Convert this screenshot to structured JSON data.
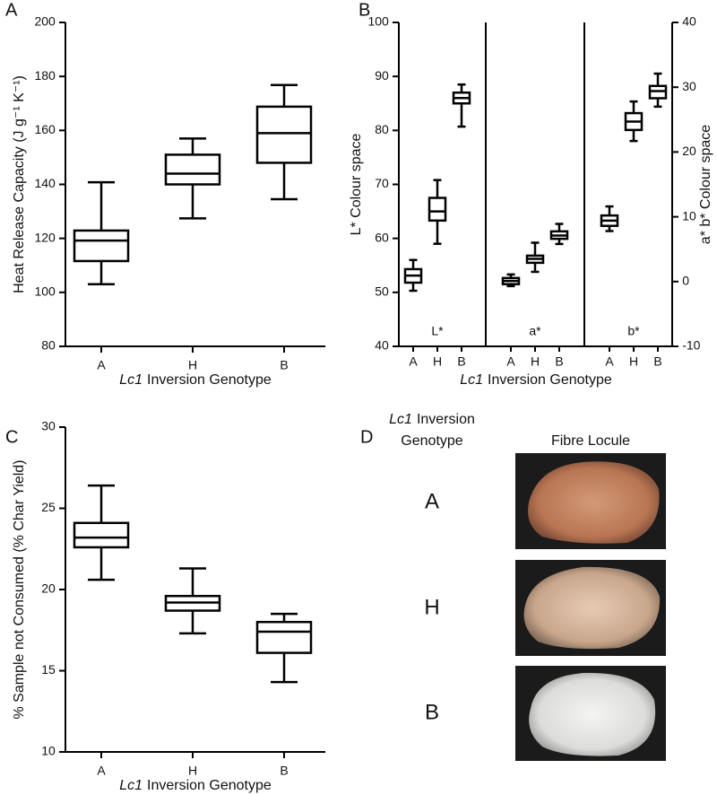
{
  "chart_data": [
    {
      "type": "box",
      "panel_label": "A",
      "ylabel": "Heat Release Capacity (J g⁻¹ K⁻¹)",
      "xlabel": {
        "italic": "Lc1",
        "text": "Inversion Genotype"
      },
      "categories": [
        "A",
        "H",
        "B"
      ],
      "boxes": [
        {
          "min": 103,
          "q1": 111.6,
          "median": 119.2,
          "q3": 122.9,
          "max": 140.8
        },
        {
          "min": 127.4,
          "q1": 140,
          "median": 144,
          "q3": 151,
          "max": 157
        },
        {
          "min": 134.5,
          "q1": 148,
          "median": 159,
          "q3": 168.8,
          "max": 176.8
        }
      ],
      "ylim": [
        80,
        200
      ],
      "yticks": [
        80,
        100,
        120,
        140,
        160,
        180,
        200
      ]
    },
    {
      "type": "grouped_box",
      "panel_label": "B",
      "ylabel": "L* Colour space",
      "y2label": "a* b* Colour space",
      "xlabel": {
        "italic": "Lc1",
        "text": "Inversion Genotype"
      },
      "groups": [
        {
          "label": "L*",
          "axis": "y",
          "categories": [
            "A",
            "H",
            "B"
          ],
          "boxes": [
            {
              "min": 50.3,
              "q1": 51.8,
              "median": 53.1,
              "q3": 54.3,
              "max": 56
            },
            {
              "min": 59,
              "q1": 63.3,
              "median": 65,
              "q3": 67.5,
              "max": 70.8
            },
            {
              "min": 80.7,
              "q1": 85,
              "median": 86,
              "q3": 87,
              "max": 88.5
            }
          ]
        },
        {
          "label": "a*",
          "axis": "y2",
          "categories": [
            "A",
            "H",
            "B"
          ],
          "boxes": [
            {
              "min": -0.7,
              "q1": -0.4,
              "median": 0.1,
              "q3": 0.55,
              "max": 1.1
            },
            {
              "min": 1.5,
              "q1": 2.9,
              "median": 3.5,
              "q3": 4,
              "max": 6
            },
            {
              "min": 5.8,
              "q1": 6.6,
              "median": 7.1,
              "q3": 7.75,
              "max": 8.9
            }
          ]
        },
        {
          "label": "b*",
          "axis": "y2",
          "categories": [
            "A",
            "H",
            "B"
          ],
          "boxes": [
            {
              "min": 7.8,
              "q1": 8.6,
              "median": 9.4,
              "q3": 10.2,
              "max": 11.6
            },
            {
              "min": 21.7,
              "q1": 23.4,
              "median": 24.7,
              "q3": 26,
              "max": 27.8
            },
            {
              "min": 27,
              "q1": 28.3,
              "median": 29.4,
              "q3": 30.2,
              "max": 32.1
            }
          ]
        }
      ],
      "ylim": [
        40,
        100
      ],
      "yticks": [
        40,
        50,
        60,
        70,
        80,
        90,
        100
      ],
      "y2lim": [
        -10,
        40
      ],
      "y2ticks": [
        -10,
        0,
        10,
        20,
        30,
        40
      ]
    },
    {
      "type": "box",
      "panel_label": "C",
      "ylabel": "% Sample not Consumed (% Char Yield)",
      "xlabel": {
        "italic": "Lc1",
        "text": "Inversion Genotype"
      },
      "categories": [
        "A",
        "H",
        "B"
      ],
      "boxes": [
        {
          "min": 20.6,
          "q1": 22.6,
          "median": 23.2,
          "q3": 24.1,
          "max": 26.4
        },
        {
          "min": 17.3,
          "q1": 18.7,
          "median": 19.2,
          "q3": 19.6,
          "max": 21.3
        },
        {
          "min": 14.3,
          "q1": 16.1,
          "median": 17.4,
          "q3": 18,
          "max": 18.5
        }
      ],
      "ylim": [
        10,
        30
      ],
      "yticks": [
        10,
        15,
        20,
        25,
        30
      ]
    }
  ],
  "panel_d": {
    "panel_label": "D",
    "header": {
      "italic": "Lc1",
      "text": "Inversion",
      "line2": "Genotype"
    },
    "column_title": "Fibre Locule",
    "rows": [
      "A",
      "H",
      "B"
    ]
  }
}
